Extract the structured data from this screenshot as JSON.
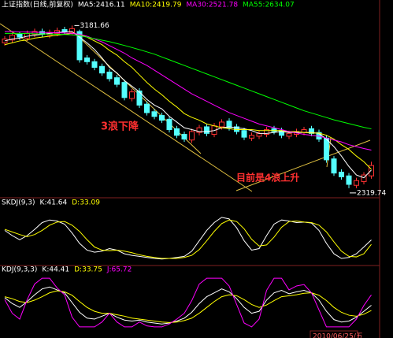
{
  "chart_data": [
    {
      "type": "candlestick",
      "title": "上证指数(日线,前复权)",
      "up_color": "#ff3232",
      "down_color": "#54ffff",
      "title_color": "#ffffff",
      "ylim": [
        2290,
        3250
      ],
      "open": [
        3090,
        3105,
        3135,
        3115,
        3135,
        3150,
        3130,
        3140,
        3160,
        3145,
        3150,
        3010,
        2990,
        2965,
        2935,
        2905,
        2880,
        2795,
        2835,
        2765,
        2725,
        2705,
        2685,
        2635,
        2605,
        2575,
        2615,
        2645,
        2605,
        2645,
        2675,
        2645,
        2625,
        2585,
        2595,
        2605,
        2635,
        2625,
        2595,
        2605,
        2615,
        2635,
        2615,
        2585,
        2475,
        2405,
        2385,
        2335,
        2355,
        2385
      ],
      "high": [
        3125,
        3145,
        3150,
        3155,
        3165,
        3165,
        3160,
        3170,
        3175,
        3181.66,
        3160,
        3025,
        3005,
        2980,
        2950,
        2920,
        2895,
        2845,
        2850,
        2780,
        2740,
        2720,
        2700,
        2650,
        2620,
        2635,
        2655,
        2660,
        2665,
        2685,
        2690,
        2660,
        2640,
        2615,
        2625,
        2645,
        2650,
        2640,
        2625,
        2635,
        2645,
        2650,
        2630,
        2600,
        2490,
        2420,
        2400,
        2375,
        2405,
        2460
      ],
      "low": [
        3075,
        3090,
        3105,
        3100,
        3120,
        3120,
        3115,
        3125,
        3135,
        3130,
        2985,
        2975,
        2945,
        2915,
        2885,
        2855,
        2785,
        2780,
        2745,
        2705,
        2685,
        2665,
        2615,
        2585,
        2565,
        2560,
        2600,
        2595,
        2590,
        2630,
        2625,
        2605,
        2575,
        2570,
        2580,
        2590,
        2605,
        2585,
        2580,
        2590,
        2600,
        2595,
        2565,
        2455,
        2385,
        2365,
        2319.74,
        2320,
        2340,
        2370
      ],
      "close": [
        3110,
        3130,
        3120,
        3140,
        3150,
        3135,
        3145,
        3155,
        3150,
        3165,
        3000,
        2990,
        2960,
        2930,
        2900,
        2870,
        2800,
        2830,
        2760,
        2720,
        2700,
        2680,
        2630,
        2600,
        2580,
        2620,
        2640,
        2610,
        2650,
        2670,
        2640,
        2620,
        2590,
        2600,
        2610,
        2630,
        2620,
        2600,
        2610,
        2620,
        2630,
        2610,
        2580,
        2470,
        2400,
        2380,
        2340,
        2360,
        2390,
        2440
      ],
      "series": [
        {
          "name": "MA5",
          "label": "MA5:2416.11",
          "color": "#ffffff",
          "values": [
            3100,
            3110,
            3115,
            3125,
            3130,
            3135,
            3140,
            3145,
            3147,
            3150,
            3120,
            3090,
            3055,
            3010,
            2960,
            2930,
            2890,
            2860,
            2830,
            2790,
            2760,
            2740,
            2700,
            2670,
            2640,
            2630,
            2620,
            2620,
            2625,
            2640,
            2645,
            2640,
            2635,
            2625,
            2610,
            2610,
            2615,
            2620,
            2615,
            2615,
            2615,
            2615,
            2610,
            2580,
            2540,
            2490,
            2435,
            2390,
            2375,
            2416.11
          ]
        },
        {
          "name": "MA10",
          "label": "MA10:2419.79",
          "color": "#ffff00",
          "values": [
            3080,
            3090,
            3100,
            3105,
            3115,
            3120,
            3125,
            3130,
            3135,
            3140,
            3135,
            3120,
            3100,
            3080,
            3050,
            3025,
            2990,
            2960,
            2920,
            2880,
            2845,
            2815,
            2780,
            2750,
            2715,
            2695,
            2680,
            2660,
            2650,
            2640,
            2635,
            2630,
            2630,
            2630,
            2625,
            2625,
            2625,
            2625,
            2620,
            2620,
            2615,
            2612,
            2612,
            2600,
            2580,
            2550,
            2525,
            2490,
            2460,
            2419.79
          ]
        },
        {
          "name": "MA30",
          "label": "MA30:2521.78",
          "color": "#ff00ff",
          "values": [
            3150,
            3150,
            3148,
            3147,
            3146,
            3145,
            3144,
            3143,
            3142,
            3140,
            3135,
            3125,
            3110,
            3095,
            3075,
            3055,
            3035,
            3010,
            2990,
            2970,
            2945,
            2920,
            2895,
            2870,
            2845,
            2820,
            2800,
            2780,
            2760,
            2740,
            2720,
            2705,
            2690,
            2675,
            2660,
            2650,
            2640,
            2630,
            2620,
            2612,
            2605,
            2600,
            2595,
            2585,
            2575,
            2565,
            2550,
            2540,
            2530,
            2521.78
          ]
        },
        {
          "name": "MA55",
          "label": "MA55:2634.07",
          "color": "#00ff00",
          "values": [
            3140,
            3140,
            3140,
            3139,
            3138,
            3137,
            3136,
            3135,
            3134,
            3132,
            3128,
            3120,
            3112,
            3104,
            3096,
            3086,
            3076,
            3065,
            3054,
            3042,
            3030,
            3015,
            3000,
            2985,
            2970,
            2955,
            2940,
            2925,
            2910,
            2895,
            2880,
            2865,
            2850,
            2835,
            2820,
            2805,
            2790,
            2775,
            2760,
            2745,
            2730,
            2718,
            2706,
            2694,
            2682,
            2672,
            2662,
            2652,
            2642,
            2634.07
          ]
        }
      ],
      "high_mark": 3181.66,
      "low_mark": 2319.74,
      "annotations": [
        {
          "text": "3浪下降",
          "color": "#ff3030"
        },
        {
          "text": "目前是4浪上升",
          "color": "#ff3030"
        }
      ]
    },
    {
      "type": "line",
      "title": "SKDJ(9,3)",
      "title_color": "#ffffff",
      "ylim": [
        0,
        100
      ],
      "series": [
        {
          "name": "K",
          "label": "K:41.64",
          "color": "#ffffff",
          "values": [
            60,
            50,
            42,
            50,
            62,
            75,
            80,
            78,
            72,
            55,
            35,
            22,
            18,
            20,
            25,
            22,
            15,
            12,
            10,
            8,
            6,
            5,
            6,
            8,
            10,
            20,
            40,
            60,
            75,
            85,
            82,
            65,
            40,
            22,
            25,
            50,
            72,
            80,
            78,
            75,
            76,
            74,
            60,
            35,
            15,
            6,
            8,
            15,
            28,
            41.64
          ]
        },
        {
          "name": "D",
          "label": "D:33.09",
          "color": "#ffff00",
          "values": [
            62,
            57,
            52,
            48,
            52,
            60,
            70,
            76,
            77,
            70,
            58,
            42,
            28,
            22,
            21,
            22,
            20,
            17,
            13,
            10,
            8,
            6,
            6,
            6,
            8,
            12,
            23,
            40,
            58,
            73,
            80,
            77,
            63,
            43,
            30,
            32,
            47,
            66,
            77,
            78,
            76,
            75,
            70,
            57,
            38,
            20,
            10,
            9,
            15,
            33.09
          ]
        }
      ]
    },
    {
      "type": "line",
      "title": "KDJ(9,3,3)",
      "title_color": "#ffffff",
      "ylim": [
        -5,
        105
      ],
      "series": [
        {
          "name": "K",
          "label": "K:44.41",
          "color": "#ffffff",
          "values": [
            60,
            48,
            40,
            52,
            66,
            78,
            82,
            76,
            70,
            50,
            30,
            18,
            16,
            22,
            28,
            20,
            14,
            12,
            14,
            10,
            8,
            6,
            8,
            12,
            18,
            30,
            48,
            62,
            70,
            78,
            72,
            58,
            40,
            28,
            32,
            55,
            70,
            75,
            68,
            72,
            75,
            70,
            55,
            32,
            15,
            10,
            12,
            20,
            32,
            44.41
          ]
        },
        {
          "name": "D",
          "label": "D:33.75",
          "color": "#ffff00",
          "values": [
            62,
            58,
            52,
            50,
            55,
            62,
            70,
            74,
            72,
            65,
            52,
            40,
            32,
            28,
            28,
            25,
            22,
            18,
            16,
            14,
            12,
            10,
            9,
            10,
            13,
            18,
            28,
            40,
            52,
            62,
            66,
            64,
            56,
            46,
            40,
            45,
            54,
            62,
            64,
            66,
            69,
            70,
            65,
            54,
            40,
            30,
            24,
            22,
            26,
            33.75
          ]
        },
        {
          "name": "J",
          "label": "J:65.72",
          "color": "#ff00ff",
          "values": [
            56,
            28,
            16,
            56,
            88,
            100,
            100,
            80,
            66,
            20,
            0,
            0,
            0,
            10,
            28,
            10,
            0,
            0,
            10,
            2,
            0,
            0,
            6,
            16,
            28,
            54,
            88,
            100,
            100,
            100,
            84,
            46,
            8,
            0,
            16,
            75,
            100,
            100,
            76,
            84,
            87,
            70,
            35,
            0,
            0,
            0,
            0,
            16,
            44,
            65.72
          ]
        }
      ]
    }
  ],
  "date_label": "2010/06/25/五"
}
